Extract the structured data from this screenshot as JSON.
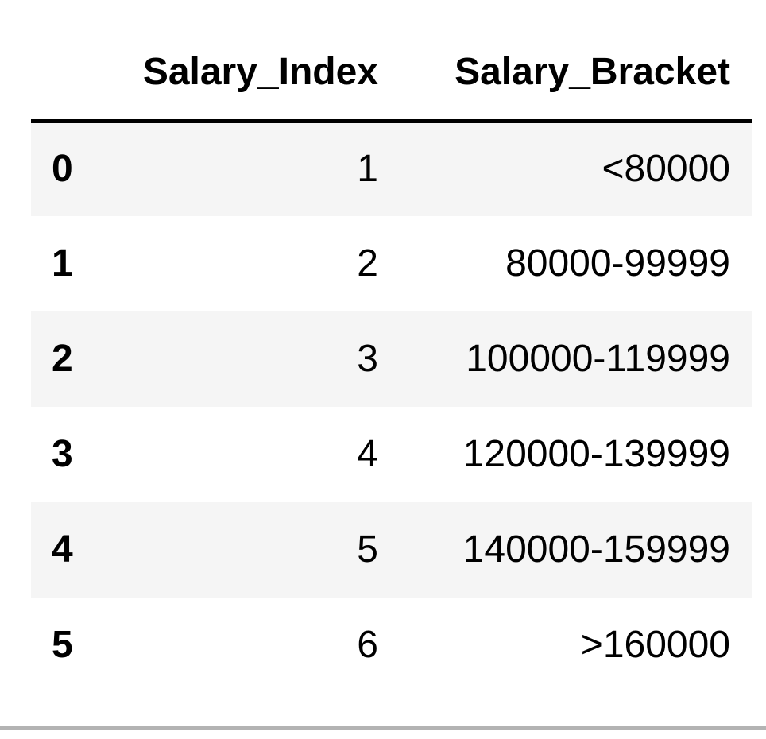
{
  "table": {
    "columns": [
      "",
      "Salary_Index",
      "Salary_Bracket"
    ],
    "rows": [
      {
        "index": "0",
        "salary_index": "1",
        "salary_bracket": "<80000"
      },
      {
        "index": "1",
        "salary_index": "2",
        "salary_bracket": "80000-99999"
      },
      {
        "index": "2",
        "salary_index": "3",
        "salary_bracket": "100000-119999"
      },
      {
        "index": "3",
        "salary_index": "4",
        "salary_bracket": "120000-139999"
      },
      {
        "index": "4",
        "salary_index": "5",
        "salary_bracket": "140000-159999"
      },
      {
        "index": "5",
        "salary_index": "6",
        "salary_bracket": ">160000"
      }
    ]
  },
  "colors": {
    "header_rule": "#000000",
    "striped_row": "#f5f5f5",
    "plain_row": "#ffffff",
    "bottom_rule": "#b3b3b3"
  }
}
